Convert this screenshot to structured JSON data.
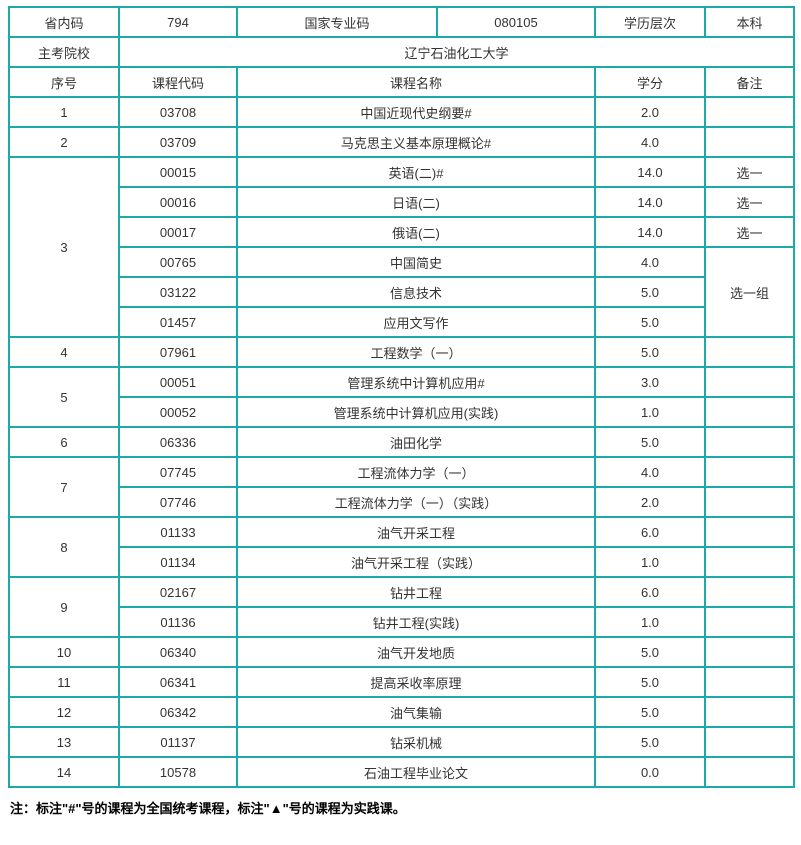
{
  "colors": {
    "border": "#1ca9a9",
    "text": "#333333",
    "note_text": "#000000",
    "background": "#ffffff"
  },
  "table": {
    "meta_rows": [
      [
        {
          "t": "省内码"
        },
        {
          "t": "794"
        },
        {
          "t": "国家专业码"
        },
        {
          "t": "080105"
        },
        {
          "t": "学历层次"
        },
        {
          "t": "本科"
        }
      ],
      [
        {
          "t": "主考院校"
        },
        {
          "t": "辽宁石油化工大学",
          "cs": 5
        }
      ]
    ],
    "header_row": [
      {
        "t": "序号"
      },
      {
        "t": "课程代码"
      },
      {
        "t": "课程名称",
        "cs": 2
      },
      {
        "t": "学分"
      },
      {
        "t": "备注"
      }
    ],
    "rows": [
      [
        {
          "t": "1"
        },
        {
          "t": "03708"
        },
        {
          "t": "中国近现代史纲要#",
          "cs": 2
        },
        {
          "t": "2.0"
        },
        {
          "t": ""
        }
      ],
      [
        {
          "t": "2"
        },
        {
          "t": "03709"
        },
        {
          "t": "马克思主义基本原理概论#",
          "cs": 2
        },
        {
          "t": "4.0"
        },
        {
          "t": ""
        }
      ],
      [
        {
          "t": "3",
          "rs": 6
        },
        {
          "t": "00015"
        },
        {
          "t": "英语(二)#",
          "cs": 2
        },
        {
          "t": "14.0"
        },
        {
          "t": "选一"
        }
      ],
      [
        {
          "t": "00016"
        },
        {
          "t": "日语(二)",
          "cs": 2
        },
        {
          "t": "14.0"
        },
        {
          "t": "选一"
        }
      ],
      [
        {
          "t": "00017"
        },
        {
          "t": "俄语(二)",
          "cs": 2
        },
        {
          "t": "14.0"
        },
        {
          "t": "选一"
        }
      ],
      [
        {
          "t": "00765"
        },
        {
          "t": "中国简史",
          "cs": 2
        },
        {
          "t": "4.0"
        },
        {
          "t": "选一组",
          "rs": 3
        }
      ],
      [
        {
          "t": "03122"
        },
        {
          "t": "信息技术",
          "cs": 2
        },
        {
          "t": "5.0"
        }
      ],
      [
        {
          "t": "01457"
        },
        {
          "t": "应用文写作",
          "cs": 2
        },
        {
          "t": "5.0"
        }
      ],
      [
        {
          "t": "4"
        },
        {
          "t": "07961"
        },
        {
          "t": "工程数学（一）",
          "cs": 2
        },
        {
          "t": "5.0"
        },
        {
          "t": ""
        }
      ],
      [
        {
          "t": "5",
          "rs": 2
        },
        {
          "t": "00051"
        },
        {
          "t": "管理系统中计算机应用#",
          "cs": 2
        },
        {
          "t": "3.0"
        },
        {
          "t": ""
        }
      ],
      [
        {
          "t": "00052"
        },
        {
          "t": "管理系统中计算机应用(实践)",
          "cs": 2
        },
        {
          "t": "1.0"
        },
        {
          "t": ""
        }
      ],
      [
        {
          "t": "6"
        },
        {
          "t": "06336"
        },
        {
          "t": "油田化学",
          "cs": 2
        },
        {
          "t": "5.0"
        },
        {
          "t": ""
        }
      ],
      [
        {
          "t": "7",
          "rs": 2
        },
        {
          "t": "07745"
        },
        {
          "t": "工程流体力学（一）",
          "cs": 2
        },
        {
          "t": "4.0"
        },
        {
          "t": ""
        }
      ],
      [
        {
          "t": "07746"
        },
        {
          "t": "工程流体力学（一）（实践）",
          "cs": 2
        },
        {
          "t": "2.0"
        },
        {
          "t": ""
        }
      ],
      [
        {
          "t": "8",
          "rs": 2
        },
        {
          "t": "01133"
        },
        {
          "t": "油气开采工程",
          "cs": 2
        },
        {
          "t": "6.0"
        },
        {
          "t": ""
        }
      ],
      [
        {
          "t": "01134"
        },
        {
          "t": "油气开采工程（实践）",
          "cs": 2
        },
        {
          "t": "1.0"
        },
        {
          "t": ""
        }
      ],
      [
        {
          "t": "9",
          "rs": 2
        },
        {
          "t": "02167"
        },
        {
          "t": "钻井工程",
          "cs": 2
        },
        {
          "t": "6.0"
        },
        {
          "t": ""
        }
      ],
      [
        {
          "t": "01136"
        },
        {
          "t": "钻井工程(实践)",
          "cs": 2
        },
        {
          "t": "1.0"
        },
        {
          "t": ""
        }
      ],
      [
        {
          "t": "10"
        },
        {
          "t": "06340"
        },
        {
          "t": "油气开发地质",
          "cs": 2
        },
        {
          "t": "5.0"
        },
        {
          "t": ""
        }
      ],
      [
        {
          "t": "11"
        },
        {
          "t": "06341"
        },
        {
          "t": "提高采收率原理",
          "cs": 2
        },
        {
          "t": "5.0"
        },
        {
          "t": ""
        }
      ],
      [
        {
          "t": "12"
        },
        {
          "t": "06342"
        },
        {
          "t": "油气集输",
          "cs": 2
        },
        {
          "t": "5.0"
        },
        {
          "t": ""
        }
      ],
      [
        {
          "t": "13"
        },
        {
          "t": "01137"
        },
        {
          "t": "钻采机械",
          "cs": 2
        },
        {
          "t": "5.0"
        },
        {
          "t": ""
        }
      ],
      [
        {
          "t": "14"
        },
        {
          "t": "10578"
        },
        {
          "t": "石油工程毕业论文",
          "cs": 2
        },
        {
          "t": "0.0"
        },
        {
          "t": ""
        }
      ]
    ]
  },
  "note": "注：标注\"#\"号的课程为全国统考课程，标注\"▲\"号的课程为实践课。"
}
